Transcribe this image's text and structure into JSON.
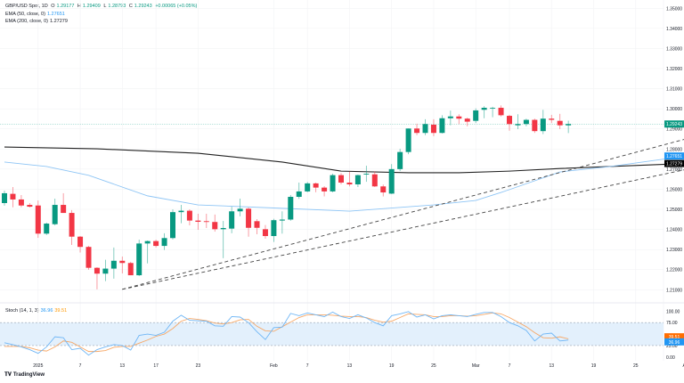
{
  "legend": {
    "symbol": "GBP/USD Spot, 1D",
    "open_label": "O",
    "open": "1.29177",
    "high_label": "H",
    "high": "1.29409",
    "low_label": "L",
    "low": "1.28793",
    "close_label": "C",
    "close": "1.29243",
    "change": "+0.00065 (+0.05%)",
    "ema50_label": "EMA (50, close, 0)",
    "ema50_value": "1.27651",
    "ema200_label": "EMA (200, close, 0)",
    "ema200_value": "1.27279",
    "stoch_label": "Stoch (14, 1, 3)",
    "stoch_k_value": "36.96",
    "stoch_d_value": "39.51"
  },
  "branding": {
    "logo_text": "TradingView",
    "logo_mark": "TV"
  },
  "colors": {
    "up": "#089981",
    "down": "#F23645",
    "ema50": "#8ec5f5",
    "ema200": "#222222",
    "stoch_k": "#6fb6f5",
    "stoch_d": "#f7a867",
    "stoch_band": "#e3f0fc",
    "grid": "#f2f3f5",
    "text": "#131722"
  },
  "chart_data": [
    {
      "type": "candlestick",
      "title": "GBP/USD Spot, 1D",
      "ylim": [
        1.205,
        1.355
      ],
      "grid": true,
      "y_ticks": [
        "1.35000",
        "1.34000",
        "1.33000",
        "1.32000",
        "1.31000",
        "1.30000",
        "1.29000",
        "1.28000",
        "1.27000",
        "1.26000",
        "1.25000",
        "1.24000",
        "1.23000",
        "1.22000",
        "1.21000"
      ],
      "x_ticks": [
        {
          "date": "2025-01-01",
          "label": "2025"
        },
        {
          "date": "2025-01-07",
          "label": "7"
        },
        {
          "date": "2025-01-13",
          "label": "13"
        },
        {
          "date": "2025-01-17",
          "label": "17"
        },
        {
          "date": "2025-01-23",
          "label": "23"
        },
        {
          "date": "2025-02-03",
          "label": "Feb"
        },
        {
          "date": "2025-02-07",
          "label": "7"
        },
        {
          "date": "2025-02-13",
          "label": "13"
        },
        {
          "date": "2025-02-19",
          "label": "19"
        },
        {
          "date": "2025-02-25",
          "label": "25"
        },
        {
          "date": "2025-03-03",
          "label": "Mar"
        },
        {
          "date": "2025-03-07",
          "label": "7"
        },
        {
          "date": "2025-03-13",
          "label": "13"
        },
        {
          "date": "2025-03-19",
          "label": "19"
        },
        {
          "date": "2025-03-25",
          "label": "25"
        },
        {
          "date": "2025-04-01",
          "label": "Apr"
        },
        {
          "date": "2025-04-05",
          "label": "5"
        },
        {
          "date": "2025-04-09",
          "label": "9"
        }
      ],
      "candles": [
        [
          "2024-12-27",
          1.2531,
          1.2593,
          1.2518,
          1.258
        ],
        [
          "2024-12-30",
          1.2577,
          1.2611,
          1.251,
          1.2549
        ],
        [
          "2024-12-31",
          1.2549,
          1.2571,
          1.251,
          1.2519
        ],
        [
          "2025-01-01",
          1.2522,
          1.2531,
          1.2509,
          1.2513
        ],
        [
          "2025-01-02",
          1.2519,
          1.2544,
          1.2358,
          1.2379
        ],
        [
          "2025-01-03",
          1.2379,
          1.2434,
          1.2372,
          1.2429
        ],
        [
          "2025-01-06",
          1.2426,
          1.2553,
          1.242,
          1.2522
        ],
        [
          "2025-01-07",
          1.2522,
          1.258,
          1.2482,
          1.2482
        ],
        [
          "2025-01-08",
          1.2482,
          1.2496,
          1.2323,
          1.2364
        ],
        [
          "2025-01-09",
          1.2364,
          1.2367,
          1.2285,
          1.2313
        ],
        [
          "2025-01-10",
          1.2313,
          1.2318,
          1.2199,
          1.2209
        ],
        [
          "2025-01-13",
          1.2209,
          1.2212,
          1.2102,
          1.218
        ],
        [
          "2025-01-14",
          1.218,
          1.2249,
          1.2143,
          1.2205
        ],
        [
          "2025-01-15",
          1.2205,
          1.231,
          1.2155,
          1.2244
        ],
        [
          "2025-01-16",
          1.2244,
          1.2265,
          1.2181,
          1.2233
        ],
        [
          "2025-01-17",
          1.2233,
          1.2239,
          1.2172,
          1.2172
        ],
        [
          "2025-01-20",
          1.2172,
          1.2349,
          1.2168,
          1.233
        ],
        [
          "2025-01-21",
          1.233,
          1.2345,
          1.2231,
          1.2342
        ],
        [
          "2025-01-22",
          1.2342,
          1.2349,
          1.231,
          1.2318
        ],
        [
          "2025-01-23",
          1.2318,
          1.2381,
          1.2298,
          1.2357
        ],
        [
          "2025-01-24",
          1.2357,
          1.25,
          1.235,
          1.2486
        ],
        [
          "2025-01-27",
          1.2486,
          1.2522,
          1.2431,
          1.2493
        ],
        [
          "2025-01-28",
          1.2493,
          1.25,
          1.242,
          1.2444
        ],
        [
          "2025-01-29",
          1.2444,
          1.2478,
          1.2398,
          1.2438
        ],
        [
          "2025-01-30",
          1.2441,
          1.2478,
          1.2407,
          1.2437
        ],
        [
          "2025-01-31",
          1.2437,
          1.2474,
          1.2389,
          1.2401
        ],
        [
          "2025-02-03",
          1.2401,
          1.2442,
          1.2257,
          1.2407
        ],
        [
          "2025-02-04",
          1.2404,
          1.2513,
          1.2381,
          1.249
        ],
        [
          "2025-02-05",
          1.249,
          1.2553,
          1.2465,
          1.2503
        ],
        [
          "2025-02-06",
          1.2503,
          1.2509,
          1.2364,
          1.2408
        ],
        [
          "2025-02-07",
          1.2441,
          1.2451,
          1.2376,
          1.2408
        ],
        [
          "2025-02-10",
          1.2401,
          1.2422,
          1.2354,
          1.2367
        ],
        [
          "2025-02-11",
          1.2367,
          1.2453,
          1.2338,
          1.2446
        ],
        [
          "2025-02-12",
          1.2444,
          1.249,
          1.2379,
          1.2449
        ],
        [
          "2025-02-13",
          1.2449,
          1.2571,
          1.2443,
          1.2562
        ],
        [
          "2025-02-14",
          1.2562,
          1.2633,
          1.2552,
          1.2589
        ],
        [
          "2025-02-17",
          1.2589,
          1.2636,
          1.2585,
          1.2629
        ],
        [
          "2025-02-18",
          1.2629,
          1.2633,
          1.2585,
          1.2608
        ],
        [
          "2025-02-19",
          1.2608,
          1.2615,
          1.2564,
          1.2589
        ],
        [
          "2025-02-20",
          1.2589,
          1.2677,
          1.2585,
          1.267
        ],
        [
          "2025-02-21",
          1.267,
          1.268,
          1.2624,
          1.2633
        ],
        [
          "2025-02-24",
          1.2633,
          1.2688,
          1.2614,
          1.2624
        ],
        [
          "2025-02-25",
          1.2624,
          1.2673,
          1.2611,
          1.267
        ],
        [
          "2025-02-26",
          1.2673,
          1.2717,
          1.2637,
          1.2677
        ],
        [
          "2025-02-27",
          1.2674,
          1.2689,
          1.2611,
          1.2614
        ],
        [
          "2025-02-28",
          1.2614,
          1.2623,
          1.2564,
          1.2584
        ],
        [
          "2025-03-03",
          1.2578,
          1.2725,
          1.2576,
          1.27
        ],
        [
          "2025-03-04",
          1.27,
          1.2801,
          1.269,
          1.2785
        ],
        [
          "2025-03-05",
          1.2785,
          1.2902,
          1.2774,
          1.2902
        ],
        [
          "2025-03-06",
          1.2902,
          1.2926,
          1.2869,
          1.288
        ],
        [
          "2025-03-07",
          1.288,
          1.2948,
          1.2869,
          1.2924
        ],
        [
          "2025-03-10",
          1.2921,
          1.2948,
          1.2864,
          1.288
        ],
        [
          "2025-03-11",
          1.288,
          1.2968,
          1.2877,
          1.2953
        ],
        [
          "2025-03-12",
          1.2953,
          1.2991,
          1.2918,
          1.2962
        ],
        [
          "2025-03-13",
          1.2962,
          1.2973,
          1.2924,
          1.2951
        ],
        [
          "2025-03-14",
          1.2951,
          1.2956,
          1.2913,
          1.2936
        ],
        [
          "2025-03-17",
          1.294,
          1.3002,
          1.2929,
          1.2992
        ],
        [
          "2025-03-18",
          1.2995,
          1.3013,
          1.2953,
          1.3005
        ],
        [
          "2025-03-19",
          1.3004,
          1.301,
          1.2958,
          1.3005
        ],
        [
          "2025-03-20",
          1.3005,
          1.3017,
          1.2962,
          1.2968
        ],
        [
          "2025-03-21",
          1.2965,
          1.297,
          1.2891,
          1.2924
        ],
        [
          "2025-03-24",
          1.2918,
          1.2973,
          1.2899,
          1.2924
        ],
        [
          "2025-03-25",
          1.2924,
          1.2951,
          1.2913,
          1.2945
        ],
        [
          "2025-03-26",
          1.2945,
          1.2951,
          1.288,
          1.2889
        ],
        [
          "2025-03-27",
          1.2889,
          1.2995,
          1.2874,
          1.2951
        ],
        [
          "2025-03-28",
          1.2951,
          1.297,
          1.2929,
          1.2945
        ],
        [
          "2025-03-31",
          1.294,
          1.2975,
          1.2899,
          1.2918
        ],
        [
          "2025-04-01",
          1.29177,
          1.29409,
          1.28793,
          1.29243
        ]
      ],
      "ema50": [
        [
          "2024-12-27",
          1.2735
        ],
        [
          "2025-01-02",
          1.2713
        ],
        [
          "2025-01-08",
          1.2669
        ],
        [
          "2025-01-16",
          1.2567
        ],
        [
          "2025-01-23",
          1.2522
        ],
        [
          "2025-02-04",
          1.2505
        ],
        [
          "2025-02-13",
          1.2491
        ],
        [
          "2025-02-25",
          1.2522
        ],
        [
          "2025-03-03",
          1.2544
        ],
        [
          "2025-03-06",
          1.2584
        ],
        [
          "2025-03-07",
          1.2598
        ],
        [
          "2025-03-14",
          1.2686
        ],
        [
          "2025-03-21",
          1.2713
        ],
        [
          "2025-04-01",
          1.27651
        ]
      ],
      "ema200": [
        [
          "2024-12-27",
          1.281
        ],
        [
          "2025-01-09",
          1.2801
        ],
        [
          "2025-01-23",
          1.2779
        ],
        [
          "2025-02-04",
          1.2735
        ],
        [
          "2025-02-12",
          1.269
        ],
        [
          "2025-02-21",
          1.2682
        ],
        [
          "2025-02-28",
          1.2682
        ],
        [
          "2025-03-07",
          1.269
        ],
        [
          "2025-03-14",
          1.2703
        ],
        [
          "2025-04-01",
          1.27279
        ]
      ],
      "trendlines": [
        {
          "style": "dashed",
          "from": [
            "2025-01-13",
            1.2102
          ],
          "to": [
            "2025-04-18",
            1.3018
          ]
        },
        {
          "style": "dashed",
          "from": [
            "2025-01-13",
            1.2102
          ],
          "to": [
            "2025-04-18",
            1.2832
          ]
        }
      ],
      "last_price_label": "1.29243",
      "ema50_label": "1.27651",
      "ema200_label": "1.27279"
    },
    {
      "type": "line",
      "title": "Stoch (14, 1, 3)",
      "ylim": [
        0,
        100
      ],
      "y_ticks": [
        "100.00",
        "75.00",
        "25.00",
        "0.00"
      ],
      "band": [
        25,
        75
      ],
      "series": [
        {
          "name": "36.96",
          "values": [
            31,
            27,
            22,
            16,
            8,
            22,
            44,
            42,
            16,
            19,
            4,
            16,
            22,
            27,
            25,
            15,
            47,
            50,
            47,
            54,
            78,
            91,
            80,
            79,
            78,
            68,
            67,
            88,
            87,
            75,
            55,
            38,
            64,
            65,
            95,
            90,
            96,
            92,
            88,
            98,
            88,
            84,
            92,
            85,
            75,
            68,
            90,
            94,
            99,
            87,
            92,
            83,
            90,
            92,
            90,
            88,
            93,
            97,
            97,
            88,
            75,
            68,
            58,
            35,
            50,
            52,
            35,
            36.96
          ]
        },
        {
          "name": "39.51",
          "values": [
            23,
            23,
            23,
            20,
            15,
            13,
            22,
            35,
            32,
            22,
            12,
            12,
            14,
            21,
            23,
            23,
            30,
            37,
            45,
            50,
            62,
            78,
            84,
            82,
            79,
            74,
            72,
            75,
            81,
            82,
            67,
            57,
            56,
            66,
            76,
            86,
            92,
            92,
            92,
            91,
            89,
            88,
            88,
            86,
            80,
            76,
            78,
            86,
            94,
            93,
            92,
            88,
            88,
            90,
            90,
            89,
            90,
            93,
            96,
            94,
            86,
            76,
            66,
            53,
            42,
            41,
            44,
            39.51
          ]
        }
      ],
      "k_label": "36.96",
      "d_label": "39.51"
    }
  ]
}
